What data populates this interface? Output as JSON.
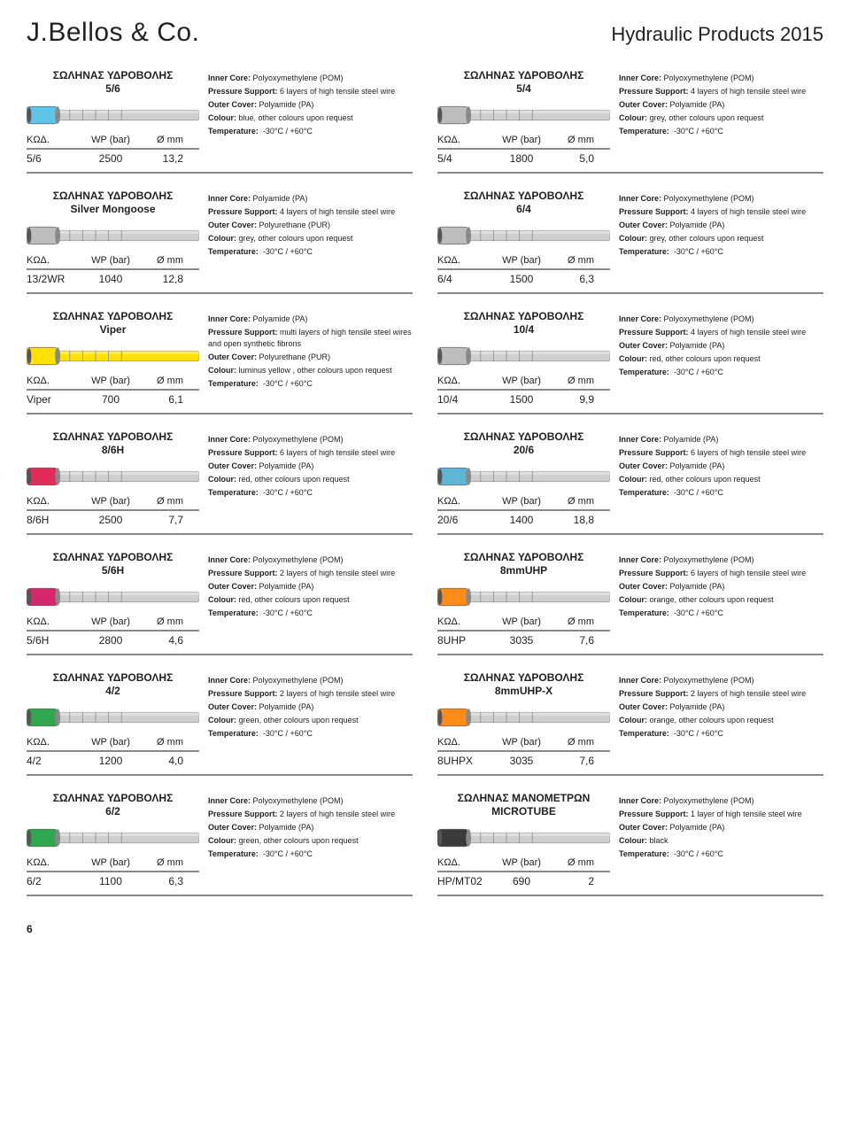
{
  "header": {
    "brand": "J.Bellos & Co.",
    "catalog": "Hydraulic Products 2015"
  },
  "labels": {
    "col1": "ΚΩΔ.",
    "col2": "WP (bar)",
    "col3": "Ø mm",
    "spec_core": "Inner Core:",
    "spec_support": "Pressure Support:",
    "spec_cover": "Outer Cover:",
    "spec_colour": "Colour:",
    "spec_temp": "Temperature:"
  },
  "page_number": "6",
  "products": [
    {
      "title": "ΣΩΛΗΝΑΣ ΥΔΡΟΒΟΛΗΣ\n5/6",
      "code": "5/6",
      "wp": "2500",
      "dia": "13,2",
      "cap_color": "#5ec5e8",
      "core": "Polyoxymethylene (POM)",
      "support": "6 layers of high tensile steel wire",
      "cover": "Polyamide (PA)",
      "colour": "blue, other colours upon request",
      "temp": "-30°C / +60°C"
    },
    {
      "title": "ΣΩΛΗΝΑΣ ΥΔΡΟΒΟΛΗΣ\n5/4",
      "code": "5/4",
      "wp": "1800",
      "dia": "5,0",
      "cap_color": "#bdbdbd",
      "core": "Polyoxymethylene (POM)",
      "support": "4 layers of high tensile steel wire",
      "cover": "Polyamide (PA)",
      "colour": "grey, other colours upon request",
      "temp": "-30°C / +60°C"
    },
    {
      "title": "ΣΩΛΗΝΑΣ ΥΔΡΟΒΟΛΗΣ\nSilver Mongoose",
      "code": "13/2WR",
      "wp": "1040",
      "dia": "12,8",
      "cap_color": "#bdbdbd",
      "core": "Polyamide (PA)",
      "support": "4 layers of high tensile steel wire",
      "cover": "Polyurethane (PUR)",
      "colour": "grey, other colours upon request",
      "temp": "-30°C / +60°C"
    },
    {
      "title": "ΣΩΛΗΝΑΣ ΥΔΡΟΒΟΛΗΣ\n6/4",
      "code": "6/4",
      "wp": "1500",
      "dia": "6,3",
      "cap_color": "#bdbdbd",
      "core": "Polyoxymethylene (POM)",
      "support": "4 layers of high tensile steel wire",
      "cover": "Polyamide (PA)",
      "colour": "grey, other colours upon request",
      "temp": "-30°C / +60°C"
    },
    {
      "title": "ΣΩΛΗΝΑΣ ΥΔΡΟΒΟΛΗΣ\nViper",
      "code": "Viper",
      "wp": "700",
      "dia": "6,1",
      "cap_color": "#ffe100",
      "body_color": "#ffe100",
      "core": "Polyamide (PA)",
      "support": "multi layers of high tensile steel wires and open synthetic fibrons",
      "cover": "Polyurethane (PUR)",
      "colour": "luminus yellow , other colours upon request",
      "temp": "-30°C / +60°C"
    },
    {
      "title": "ΣΩΛΗΝΑΣ ΥΔΡΟΒΟΛΗΣ\n10/4",
      "code": "10/4",
      "wp": "1500",
      "dia": "9,9",
      "cap_color": "#bdbdbd",
      "core": "Polyoxymethylene (POM)",
      "support": "4 layers of high tensile steel wire",
      "cover": "Polyamide (PA)",
      "colour": "red, other colours upon request",
      "temp": "-30°C / +60°C"
    },
    {
      "title": "ΣΩΛΗΝΑΣ ΥΔΡΟΒΟΛΗΣ\n8/6H",
      "code": "8/6H",
      "wp": "2500",
      "dia": "7,7",
      "cap_color": "#e32b5a",
      "core": "Polyoxymethylene (POM)",
      "support": "6 layers of high tensile steel wire",
      "cover": "Polyamide (PA)",
      "colour": "red, other colours upon request",
      "temp": "-30°C / +60°C"
    },
    {
      "title": "ΣΩΛΗΝΑΣ ΥΔΡΟΒΟΛΗΣ\n20/6",
      "code": "20/6",
      "wp": "1400",
      "dia": "18,8",
      "cap_color": "#5fb5d6",
      "core": "Polyamide (PA)",
      "support": "6 layers of high tensile steel wire",
      "cover": "Polyamide (PA)",
      "colour": "red, other colours upon request",
      "temp": "-30°C / +60°C"
    },
    {
      "title": "ΣΩΛΗΝΑΣ ΥΔΡΟΒΟΛΗΣ\n5/6H",
      "code": "5/6H",
      "wp": "2800",
      "dia": "4,6",
      "cap_color": "#d6276c",
      "core": "Polyoxymethylene (POM)",
      "support": "2 layers of high tensile steel wire",
      "cover": "Polyamide (PA)",
      "colour": "red, other colours upon request",
      "temp": "-30°C / +60°C"
    },
    {
      "title": "ΣΩΛΗΝΑΣ ΥΔΡΟΒΟΛΗΣ\n8mmUHP",
      "code": "8UHP",
      "wp": "3035",
      "dia": "7,6",
      "cap_color": "#ff8c1a",
      "core": "Polyoxymethylene (POM)",
      "support": "6 layers of high tensile steel wire",
      "cover": "Polyamide (PA)",
      "colour": "orange, other colours upon request",
      "temp": "-30°C / +60°C"
    },
    {
      "title": "ΣΩΛΗΝΑΣ ΥΔΡΟΒΟΛΗΣ\n4/2",
      "code": "4/2",
      "wp": "1200",
      "dia": "4,0",
      "cap_color": "#2fa84f",
      "core": "Polyoxymethylene (POM)",
      "support": "2 layers of high tensile steel wire",
      "cover": "Polyamide (PA)",
      "colour": "green, other colours upon request",
      "temp": "-30°C / +60°C"
    },
    {
      "title": "ΣΩΛΗΝΑΣ ΥΔΡΟΒΟΛΗΣ\n8mmUHP-X",
      "code": "8UHPX",
      "wp": "3035",
      "dia": "7,6",
      "cap_color": "#ff8c1a",
      "core": "Polyoxymethylene (POM)",
      "support": "2 layers of high tensile steel wire",
      "cover": "Polyamide (PA)",
      "colour": "orange, other colours upon request",
      "temp": "-30°C / +60°C"
    },
    {
      "title": "ΣΩΛΗΝΑΣ ΥΔΡΟΒΟΛΗΣ\n6/2",
      "code": "6/2",
      "wp": "1100",
      "dia": "6,3",
      "cap_color": "#2fa84f",
      "core": "Polyoxymethylene (POM)",
      "support": "2 layers of high tensile steel wire",
      "cover": "Polyamide (PA)",
      "colour": "green, other colours upon request",
      "temp": "-30°C / +60°C"
    },
    {
      "title": "ΣΩΛΗΝΑΣ ΜΑΝΟΜΕΤΡΩΝ\nMICROTUBE",
      "code": "HP/MT02",
      "wp": "690",
      "dia": "2",
      "cap_color": "#3a3a3a",
      "core": "Polyoxymethylene (POM)",
      "support": "1 layer of high tensile steel wire",
      "cover": "Polyamide (PA)",
      "colour": "black",
      "temp": "-30°C / +60°C"
    }
  ]
}
